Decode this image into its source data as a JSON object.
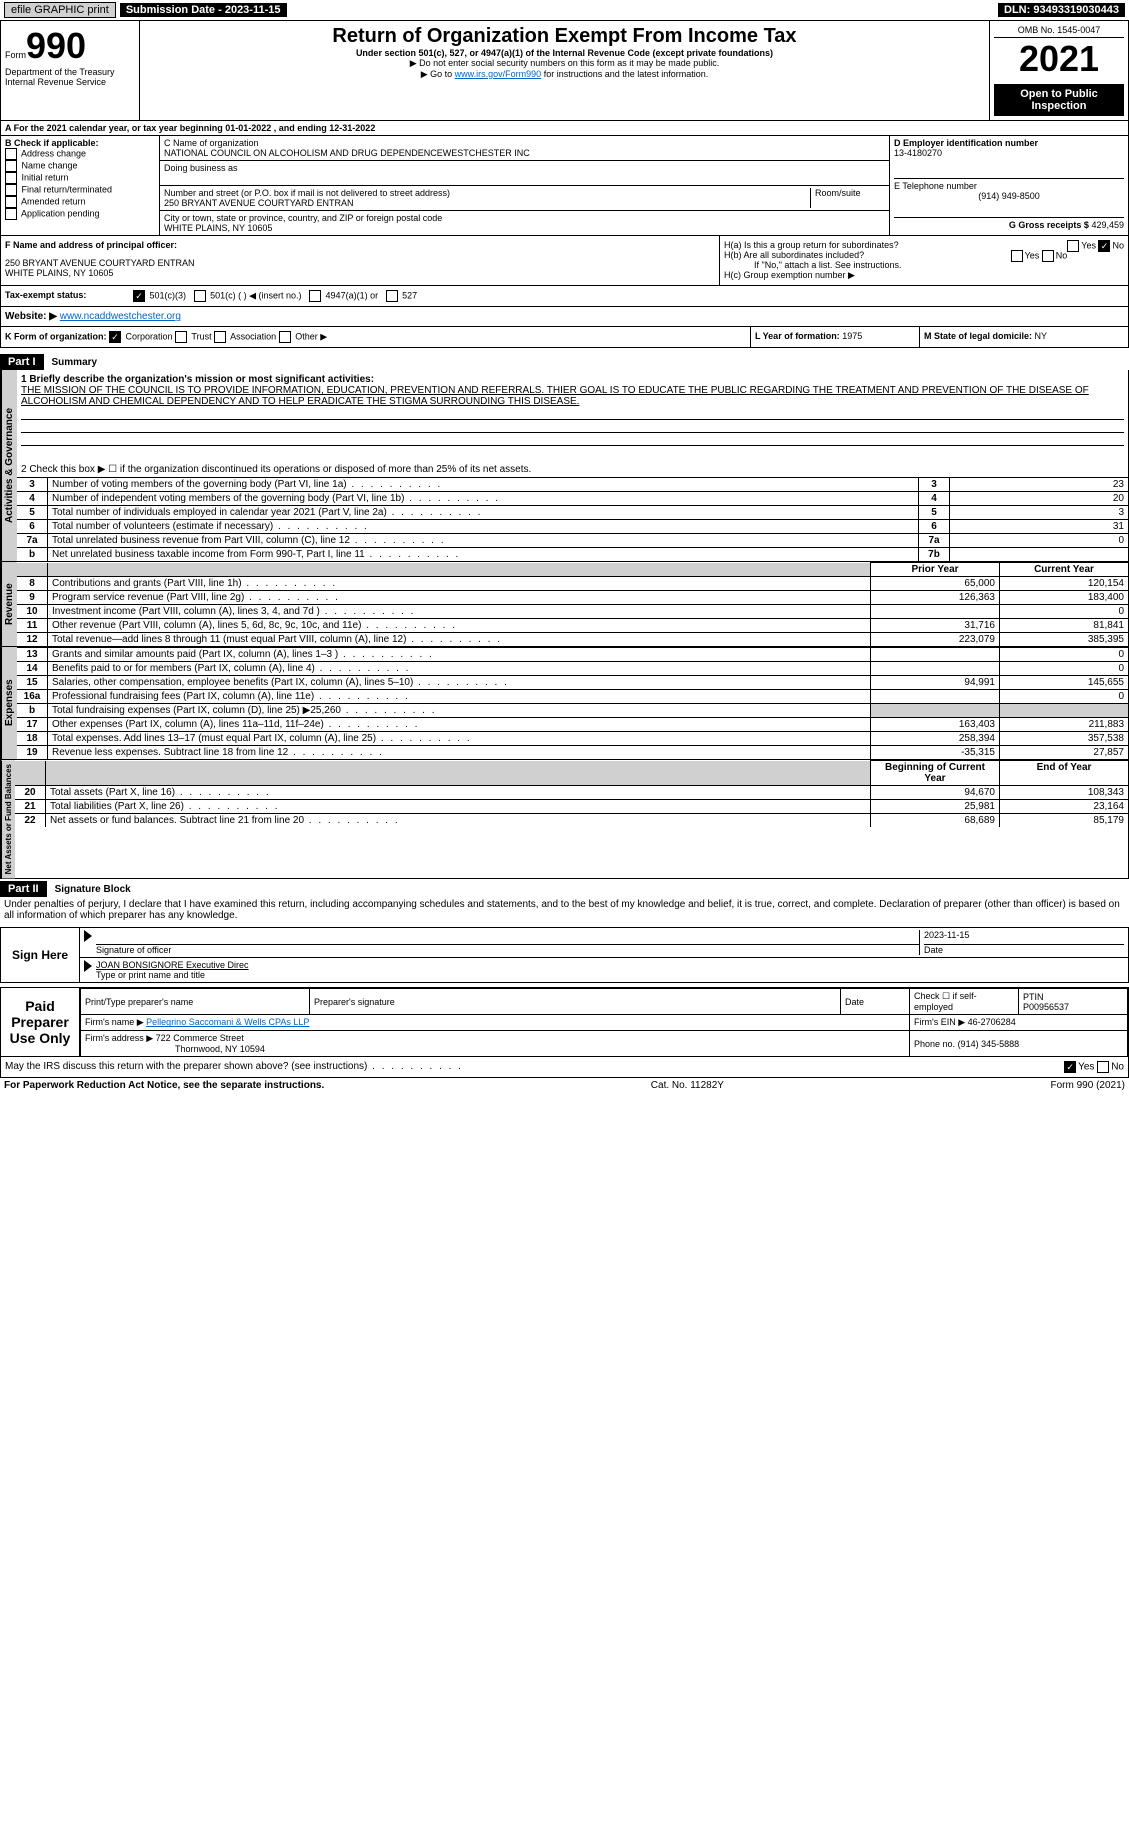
{
  "topbar": {
    "efile": "efile GRAPHIC print",
    "sub": "Submission Date - 2023-11-15",
    "dln": "DLN: 93493319030443"
  },
  "header": {
    "form_prefix": "Form",
    "form_no": "990",
    "title": "Return of Organization Exempt From Income Tax",
    "subtitle": "Under section 501(c), 527, or 4947(a)(1) of the Internal Revenue Code (except private foundations)",
    "warn": "▶ Do not enter social security numbers on this form as it may be made public.",
    "goto_pre": "▶ Go to ",
    "goto_link": "www.irs.gov/Form990",
    "goto_post": " for instructions and the latest information.",
    "dept": "Department of the Treasury",
    "irs": "Internal Revenue Service",
    "omb": "OMB No. 1545-0047",
    "year": "2021",
    "open": "Open to Public Inspection"
  },
  "A": {
    "line": "A For the 2021 calendar year, or tax year beginning 01-01-2022    , and ending 12-31-2022"
  },
  "B": {
    "label": "B Check if applicable:",
    "opts": [
      "Address change",
      "Name change",
      "Initial return",
      "Final return/terminated",
      "Amended return",
      "Application pending"
    ]
  },
  "C": {
    "name_label": "C Name of organization",
    "name": "NATIONAL COUNCIL ON ALCOHOLISM AND DRUG DEPENDENCEWESTCHESTER INC",
    "dba_label": "Doing business as",
    "dba": "",
    "street_label": "Number and street (or P.O. box if mail is not delivered to street address)",
    "room": "Room/suite",
    "street": "250 BRYANT AVENUE COURTYARD ENTRAN",
    "city_label": "City or town, state or province, country, and ZIP or foreign postal code",
    "city": "WHITE PLAINS, NY  10605"
  },
  "D": {
    "label": "D Employer identification number",
    "val": "13-4180270"
  },
  "E": {
    "label": "E Telephone number",
    "val": "(914) 949-8500"
  },
  "G": {
    "label": "G Gross receipts $",
    "val": "429,459"
  },
  "F": {
    "label": "F  Name and address of principal officer:",
    "addr1": "250 BRYANT AVENUE COURTYARD ENTRAN",
    "addr2": "WHITE PLAINS, NY  10605"
  },
  "H": {
    "a": "H(a)  Is this a group return for subordinates?",
    "a_yes": "Yes",
    "a_no": "No",
    "b": "H(b)  Are all subordinates included?",
    "b_note": "If \"No,\" attach a list. See instructions.",
    "c": "H(c)  Group exemption number ▶"
  },
  "I": {
    "label": "Tax-exempt status:",
    "o1": "501(c)(3)",
    "o2": "501(c) (  ) ◀ (insert no.)",
    "o3": "4947(a)(1) or",
    "o4": "527"
  },
  "J": {
    "label": "Website: ▶",
    "val": "www.ncaddwestchester.org"
  },
  "K": {
    "label": "K Form of organization:",
    "o1": "Corporation",
    "o2": "Trust",
    "o3": "Association",
    "o4": "Other ▶"
  },
  "L": {
    "label": "L Year of formation:",
    "val": "1975"
  },
  "M": {
    "label": "M State of legal domicile:",
    "val": "NY"
  },
  "part1": {
    "hdr": "Part I",
    "title": "Summary",
    "q1": "1 Briefly describe the organization's mission or most significant activities:",
    "mission": "THE MISSION OF THE COUNCIL IS TO PROVIDE INFORMATION, EDUCATION, PREVENTION AND REFERRALS. THIER GOAL IS TO EDUCATE THE PUBLIC REGARDING THE TREATMENT AND PREVENTION OF THE DISEASE OF ALCOHOLISM AND CHEMICAL DEPENDENCY AND TO HELP ERADICATE THE STIGMA SURROUNDING THIS DISEASE.",
    "q2": "2  Check this box ▶ ☐  if the organization discontinued its operations or disposed of more than 25% of its net assets.",
    "gov_lines": [
      {
        "n": "3",
        "t": "Number of voting members of the governing body (Part VI, line 1a)",
        "box": "3",
        "v": "23"
      },
      {
        "n": "4",
        "t": "Number of independent voting members of the governing body (Part VI, line 1b)",
        "box": "4",
        "v": "20"
      },
      {
        "n": "5",
        "t": "Total number of individuals employed in calendar year 2021 (Part V, line 2a)",
        "box": "5",
        "v": "3"
      },
      {
        "n": "6",
        "t": "Total number of volunteers (estimate if necessary)",
        "box": "6",
        "v": "31"
      },
      {
        "n": "7a",
        "t": "Total unrelated business revenue from Part VIII, column (C), line 12",
        "box": "7a",
        "v": "0"
      },
      {
        "n": "b",
        "t": "Net unrelated business taxable income from Form 990-T, Part I, line 11",
        "box": "7b",
        "v": ""
      }
    ],
    "col_prior": "Prior Year",
    "col_cur": "Current Year",
    "rev": [
      {
        "n": "8",
        "t": "Contributions and grants (Part VIII, line 1h)",
        "p": "65,000",
        "c": "120,154"
      },
      {
        "n": "9",
        "t": "Program service revenue (Part VIII, line 2g)",
        "p": "126,363",
        "c": "183,400"
      },
      {
        "n": "10",
        "t": "Investment income (Part VIII, column (A), lines 3, 4, and 7d )",
        "p": "",
        "c": "0"
      },
      {
        "n": "11",
        "t": "Other revenue (Part VIII, column (A), lines 5, 6d, 8c, 9c, 10c, and 11e)",
        "p": "31,716",
        "c": "81,841"
      },
      {
        "n": "12",
        "t": "Total revenue—add lines 8 through 11 (must equal Part VIII, column (A), line 12)",
        "p": "223,079",
        "c": "385,395"
      }
    ],
    "exp": [
      {
        "n": "13",
        "t": "Grants and similar amounts paid (Part IX, column (A), lines 1–3 )",
        "p": "",
        "c": "0"
      },
      {
        "n": "14",
        "t": "Benefits paid to or for members (Part IX, column (A), line 4)",
        "p": "",
        "c": "0"
      },
      {
        "n": "15",
        "t": "Salaries, other compensation, employee benefits (Part IX, column (A), lines 5–10)",
        "p": "94,991",
        "c": "145,655"
      },
      {
        "n": "16a",
        "t": "Professional fundraising fees (Part IX, column (A), line 11e)",
        "p": "",
        "c": "0"
      },
      {
        "n": "b",
        "t": "Total fundraising expenses (Part IX, column (D), line 25) ▶25,260",
        "p": "gray",
        "c": "gray"
      },
      {
        "n": "17",
        "t": "Other expenses (Part IX, column (A), lines 11a–11d, 11f–24e)",
        "p": "163,403",
        "c": "211,883"
      },
      {
        "n": "18",
        "t": "Total expenses. Add lines 13–17 (must equal Part IX, column (A), line 25)",
        "p": "258,394",
        "c": "357,538"
      },
      {
        "n": "19",
        "t": "Revenue less expenses. Subtract line 18 from line 12",
        "p": "-35,315",
        "c": "27,857"
      }
    ],
    "col_beg": "Beginning of Current Year",
    "col_end": "End of Year",
    "net": [
      {
        "n": "20",
        "t": "Total assets (Part X, line 16)",
        "p": "94,670",
        "c": "108,343"
      },
      {
        "n": "21",
        "t": "Total liabilities (Part X, line 26)",
        "p": "25,981",
        "c": "23,164"
      },
      {
        "n": "22",
        "t": "Net assets or fund balances. Subtract line 21 from line 20",
        "p": "68,689",
        "c": "85,179"
      }
    ],
    "vtabs": {
      "gov": "Activities & Governance",
      "rev": "Revenue",
      "exp": "Expenses",
      "net": "Net Assets or Fund Balances"
    }
  },
  "part2": {
    "hdr": "Part II",
    "title": "Signature Block",
    "decl": "Under penalties of perjury, I declare that I have examined this return, including accompanying schedules and statements, and to the best of my knowledge and belief, it is true, correct, and complete. Declaration of preparer (other than officer) is based on all information of which preparer has any knowledge.",
    "sign_here": "Sign Here",
    "sig_officer": "Signature of officer",
    "date": "Date",
    "date_val": "2023-11-15",
    "officer_name": "JOAN BONSIGNORE Executive Direc",
    "type_name": "Type or print name and title",
    "paid": "Paid Preparer Use Only",
    "prep_name_label": "Print/Type preparer's name",
    "prep_sig": "Preparer's signature",
    "prep_date": "Date",
    "check_self": "Check ☐ if self-employed",
    "ptin_label": "PTIN",
    "ptin": "P00956537",
    "firm_name_label": "Firm's name   ▶",
    "firm_name": "Pellegrino Saccomani & Wells CPAs LLP",
    "firm_ein_label": "Firm's EIN ▶",
    "firm_ein": "46-2706284",
    "firm_addr_label": "Firm's address ▶",
    "firm_addr1": "722 Commerce Street",
    "firm_addr2": "Thornwood, NY  10594",
    "phone_label": "Phone no.",
    "phone": "(914) 345-5888",
    "discuss": "May the IRS discuss this return with the preparer shown above? (see instructions)",
    "yes": "Yes",
    "no": "No"
  },
  "footer": {
    "l": "For Paperwork Reduction Act Notice, see the separate instructions.",
    "c": "Cat. No. 11282Y",
    "r": "Form 990 (2021)"
  }
}
